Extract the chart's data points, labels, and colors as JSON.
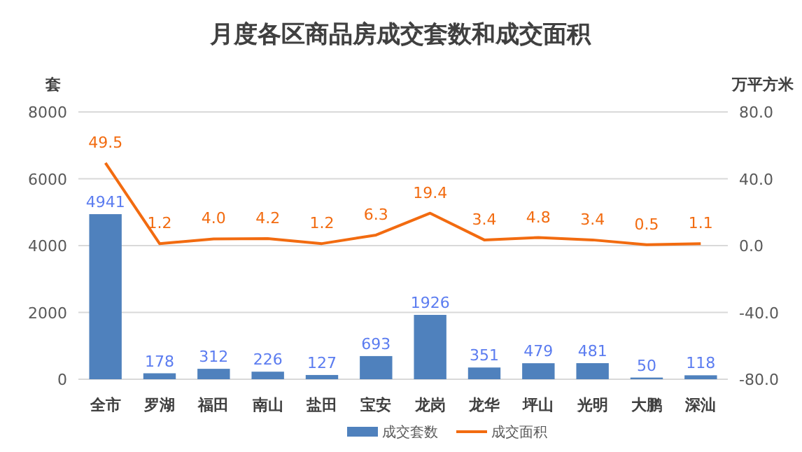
{
  "chart_data": {
    "type": "bar",
    "title": "月度各区商品房成交套数和成交面积",
    "ylabel": "套",
    "y2label": "万平方米",
    "categories": [
      "全市",
      "罗湖",
      "福田",
      "南山",
      "盐田",
      "宝安",
      "龙岗",
      "龙华",
      "坪山",
      "光明",
      "大鹏",
      "深汕"
    ],
    "series": [
      {
        "name": "成交套数",
        "color": "#4f81bd",
        "values": [
          4941,
          178,
          312,
          226,
          127,
          693,
          1926,
          351,
          479,
          481,
          50,
          118
        ],
        "value_labels": [
          "4941",
          "178",
          "312",
          "226",
          "127",
          "693",
          "1926",
          "351",
          "479",
          "481",
          "50",
          "118"
        ]
      },
      {
        "name": "成交面积",
        "type": "line",
        "axis": "y2",
        "color": "#f26b10",
        "values": [
          49.5,
          1.2,
          4.0,
          4.2,
          1.2,
          6.3,
          19.4,
          3.4,
          4.8,
          3.4,
          0.5,
          1.1
        ],
        "value_labels": [
          "49.5",
          "1.2",
          "4.0",
          "4.2",
          "1.2",
          "6.3",
          "19.4",
          "3.4",
          "4.8",
          "3.4",
          "0.5",
          "1.1"
        ]
      }
    ],
    "ylim": [
      0,
      8000
    ],
    "yticks": [
      0,
      2000,
      4000,
      6000,
      8000
    ],
    "y2lim": [
      -80,
      80
    ],
    "y2ticks": [
      {
        "value": -80,
        "label": "-80.0"
      },
      {
        "value": -40,
        "label": "-40.0"
      },
      {
        "value": 0,
        "label": "0.0"
      },
      {
        "value": 40,
        "label": "40.0"
      },
      {
        "value": 80,
        "label": "80.0"
      }
    ],
    "grid": "y",
    "legend": "bottom",
    "marker": "none"
  }
}
